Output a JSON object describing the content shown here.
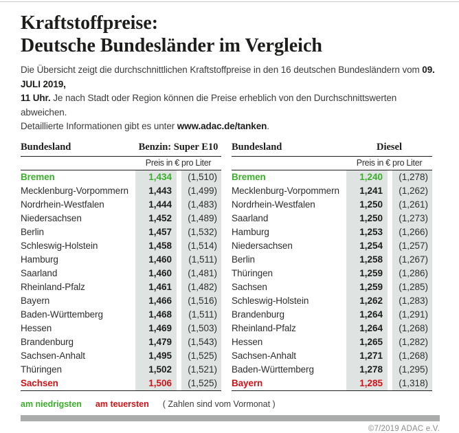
{
  "colors": {
    "green": "#3aaf2a",
    "red": "#d01317",
    "column_bg": "#dfe3e1",
    "bar_gray": "#a9acab"
  },
  "header": {
    "title_line1": "Kraftstoffpreise:",
    "title_line2": "Deutsche Bundesländer im Vergleich"
  },
  "intro": {
    "line1_normal": "Die Übersicht zeigt die durchschnittlichen Kraftstoffpreise in den 16 deutschen Bundesländern vom ",
    "line1_bold": "09. JULI 2019,",
    "line2_bold": "11 Uhr.",
    "line2_normal": " Je nach Stadt oder Region können die Preise erheblich von den Durchschnittswerten abweichen.",
    "line3_normal": "Detaillierte Informationen gibt es unter ",
    "line3_bold": "www.adac.de/tanken",
    "line3_end": "."
  },
  "benzin_table": {
    "col_header": "Bundesland",
    "fuel_label": "Benzin: Super E10",
    "unit_label": "Preis in € pro Liter",
    "rows": [
      {
        "name": "Bremen",
        "price": "1,434",
        "prev": "(1,510)",
        "highlight": "low"
      },
      {
        "name": "Mecklenburg-Vorpommern",
        "price": "1,443",
        "prev": "(1,499)",
        "highlight": ""
      },
      {
        "name": "Nordrhein-Westfalen",
        "price": "1,444",
        "prev": "(1,483)",
        "highlight": ""
      },
      {
        "name": "Niedersachsen",
        "price": "1,452",
        "prev": "(1,489)",
        "highlight": ""
      },
      {
        "name": "Berlin",
        "price": "1,457",
        "prev": "(1,532)",
        "highlight": ""
      },
      {
        "name": "Schleswig-Holstein",
        "price": "1,458",
        "prev": "(1,514)",
        "highlight": ""
      },
      {
        "name": "Hamburg",
        "price": "1,460",
        "prev": "(1,511)",
        "highlight": ""
      },
      {
        "name": "Saarland",
        "price": "1,460",
        "prev": "(1,481)",
        "highlight": ""
      },
      {
        "name": "Rheinland-Pfalz",
        "price": "1,461",
        "prev": "(1,482)",
        "highlight": ""
      },
      {
        "name": "Bayern",
        "price": "1,466",
        "prev": "(1,516)",
        "highlight": ""
      },
      {
        "name": "Baden-Württemberg",
        "price": "1,468",
        "prev": "(1,511)",
        "highlight": ""
      },
      {
        "name": "Hessen",
        "price": "1,469",
        "prev": "(1,503)",
        "highlight": ""
      },
      {
        "name": "Brandenburg",
        "price": "1,479",
        "prev": "(1,543)",
        "highlight": ""
      },
      {
        "name": "Sachsen-Anhalt",
        "price": "1,495",
        "prev": "(1,525)",
        "highlight": ""
      },
      {
        "name": "Thüringen",
        "price": "1,502",
        "prev": "(1,521)",
        "highlight": ""
      },
      {
        "name": "Sachsen",
        "price": "1,506",
        "prev": "(1,525)",
        "highlight": "high"
      }
    ]
  },
  "diesel_table": {
    "col_header": "Bundesland",
    "fuel_label": "Diesel",
    "unit_label": "Preis in € pro Liter",
    "rows": [
      {
        "name": "Bremen",
        "price": "1,240",
        "prev": "(1,278)",
        "highlight": "low"
      },
      {
        "name": "Mecklenburg-Vorpommern",
        "price": "1,241",
        "prev": "(1,262)",
        "highlight": ""
      },
      {
        "name": "Nordrhein-Westfalen",
        "price": "1,250",
        "prev": "(1,261)",
        "highlight": ""
      },
      {
        "name": "Saarland",
        "price": "1,250",
        "prev": "(1,273)",
        "highlight": ""
      },
      {
        "name": "Hamburg",
        "price": "1,253",
        "prev": "(1,266)",
        "highlight": ""
      },
      {
        "name": "Niedersachsen",
        "price": "1,254",
        "prev": "(1,257)",
        "highlight": ""
      },
      {
        "name": "Berlin",
        "price": "1,258",
        "prev": "(1,267)",
        "highlight": ""
      },
      {
        "name": "Thüringen",
        "price": "1,259",
        "prev": "(1,286)",
        "highlight": ""
      },
      {
        "name": "Sachsen",
        "price": "1,259",
        "prev": "(1,285)",
        "highlight": ""
      },
      {
        "name": "Schleswig-Holstein",
        "price": "1,262",
        "prev": "(1,283)",
        "highlight": ""
      },
      {
        "name": "Brandenburg",
        "price": "1,264",
        "prev": "(1,291)",
        "highlight": ""
      },
      {
        "name": "Rheinland-Pfalz",
        "price": "1,264",
        "prev": "(1,268)",
        "highlight": ""
      },
      {
        "name": "Hessen",
        "price": "1,265",
        "prev": "(1,282)",
        "highlight": ""
      },
      {
        "name": "Sachsen-Anhalt",
        "price": "1,271",
        "prev": "(1,268)",
        "highlight": ""
      },
      {
        "name": "Baden-Württemberg",
        "price": "1,278",
        "prev": "(1,295)",
        "highlight": ""
      },
      {
        "name": "Bayern",
        "price": "1,285",
        "prev": "(1,318)",
        "highlight": "high"
      }
    ]
  },
  "legend": {
    "lowest_label": "am niedrigsten",
    "highest_label": "am teuersten",
    "note": "( Zahlen sind vom Vormonat )"
  },
  "footer": {
    "copyright": "©7/2019 ADAC e.V."
  },
  "chart_data": [
    {
      "type": "table",
      "title": "Benzin: Super E10",
      "unit": "Preis in € pro Liter",
      "columns": [
        "Bundesland",
        "Preis 09.07.2019",
        "Vormonat"
      ],
      "rows": [
        [
          "Bremen",
          1.434,
          1.51
        ],
        [
          "Mecklenburg-Vorpommern",
          1.443,
          1.499
        ],
        [
          "Nordrhein-Westfalen",
          1.444,
          1.483
        ],
        [
          "Niedersachsen",
          1.452,
          1.489
        ],
        [
          "Berlin",
          1.457,
          1.532
        ],
        [
          "Schleswig-Holstein",
          1.458,
          1.514
        ],
        [
          "Hamburg",
          1.46,
          1.511
        ],
        [
          "Saarland",
          1.46,
          1.481
        ],
        [
          "Rheinland-Pfalz",
          1.461,
          1.482
        ],
        [
          "Bayern",
          1.466,
          1.516
        ],
        [
          "Baden-Württemberg",
          1.468,
          1.511
        ],
        [
          "Hessen",
          1.469,
          1.503
        ],
        [
          "Brandenburg",
          1.479,
          1.543
        ],
        [
          "Sachsen-Anhalt",
          1.495,
          1.525
        ],
        [
          "Thüringen",
          1.502,
          1.521
        ],
        [
          "Sachsen",
          1.506,
          1.525
        ]
      ],
      "annotations": {
        "lowest": "Bremen",
        "highest": "Sachsen"
      }
    },
    {
      "type": "table",
      "title": "Diesel",
      "unit": "Preis in € pro Liter",
      "columns": [
        "Bundesland",
        "Preis 09.07.2019",
        "Vormonat"
      ],
      "rows": [
        [
          "Bremen",
          1.24,
          1.278
        ],
        [
          "Mecklenburg-Vorpommern",
          1.241,
          1.262
        ],
        [
          "Nordrhein-Westfalen",
          1.25,
          1.261
        ],
        [
          "Saarland",
          1.25,
          1.273
        ],
        [
          "Hamburg",
          1.253,
          1.266
        ],
        [
          "Niedersachsen",
          1.254,
          1.257
        ],
        [
          "Berlin",
          1.258,
          1.267
        ],
        [
          "Thüringen",
          1.259,
          1.286
        ],
        [
          "Sachsen",
          1.259,
          1.285
        ],
        [
          "Schleswig-Holstein",
          1.262,
          1.283
        ],
        [
          "Brandenburg",
          1.264,
          1.291
        ],
        [
          "Rheinland-Pfalz",
          1.264,
          1.268
        ],
        [
          "Hessen",
          1.265,
          1.282
        ],
        [
          "Sachsen-Anhalt",
          1.271,
          1.268
        ],
        [
          "Baden-Württemberg",
          1.278,
          1.295
        ],
        [
          "Bayern",
          1.285,
          1.318
        ]
      ],
      "annotations": {
        "lowest": "Bremen",
        "highest": "Bayern"
      }
    }
  ]
}
